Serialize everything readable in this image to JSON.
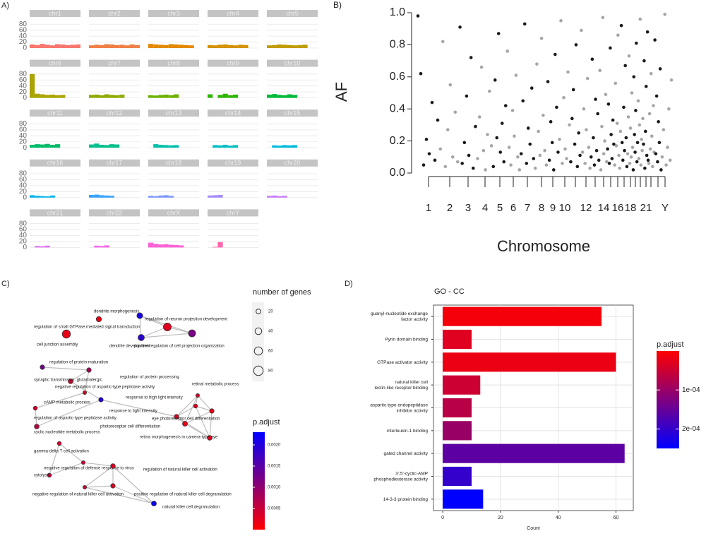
{
  "chart_data": [
    {
      "type": "facet-histogram",
      "panel": "A)",
      "ylim": [
        0,
        90
      ],
      "yticks": [
        0,
        20,
        40,
        60,
        80
      ],
      "facets": [
        {
          "name": "chr1",
          "color": "#f8766d",
          "values": [
            12,
            10,
            14,
            11,
            9,
            13,
            12,
            10,
            11,
            12
          ]
        },
        {
          "name": "chr2",
          "color": "#ef7f45",
          "values": [
            9,
            11,
            10,
            13,
            12,
            10,
            11,
            9,
            12,
            10
          ]
        },
        {
          "name": "chr3",
          "color": "#e38900",
          "values": [
            14,
            12,
            11,
            10,
            13,
            12,
            11,
            10,
            9,
            null
          ]
        },
        {
          "name": "chr4",
          "color": "#d39200",
          "values": [
            10,
            9,
            11,
            12,
            10,
            9,
            11,
            10,
            null,
            null
          ]
        },
        {
          "name": "chr5",
          "color": "#c09b00",
          "values": [
            9,
            10,
            12,
            11,
            10,
            9,
            10,
            11,
            null,
            null
          ]
        },
        {
          "name": "chr6",
          "color": "#a9a400",
          "values": [
            80,
            14,
            12,
            10,
            11,
            9,
            10,
            null,
            null,
            null
          ]
        },
        {
          "name": "chr7",
          "color": "#8fab00",
          "values": [
            10,
            11,
            9,
            12,
            10,
            9,
            11,
            null,
            null,
            null
          ]
        },
        {
          "name": "chr8",
          "color": "#6bb100",
          "values": [
            9,
            8,
            10,
            11,
            9,
            12,
            null,
            null,
            null,
            null
          ]
        },
        {
          "name": "chr9",
          "color": "#2db600",
          "values": [
            12,
            null,
            10,
            14,
            9,
            11,
            null,
            null,
            null,
            null
          ]
        },
        {
          "name": "chr10",
          "color": "#00ba38",
          "values": [
            11,
            13,
            10,
            9,
            12,
            10,
            null,
            null,
            null,
            null
          ]
        },
        {
          "name": "chr11",
          "color": "#00bc6a",
          "values": [
            10,
            12,
            11,
            13,
            10,
            12,
            null,
            null,
            null,
            null
          ]
        },
        {
          "name": "chr12",
          "color": "#00bf8c",
          "values": [
            11,
            14,
            10,
            9,
            12,
            11,
            null,
            null,
            null,
            null
          ]
        },
        {
          "name": "chr13",
          "color": "#00c0aa",
          "values": [
            null,
            12,
            10,
            9,
            8,
            9,
            null,
            null,
            null,
            null
          ]
        },
        {
          "name": "chr14",
          "color": "#00bfc4",
          "values": [
            null,
            9,
            8,
            10,
            7,
            9,
            null,
            null,
            null,
            null
          ]
        },
        {
          "name": "chr15",
          "color": "#00bcdc",
          "values": [
            null,
            8,
            7,
            9,
            8,
            9,
            null,
            null,
            null,
            null
          ]
        },
        {
          "name": "chr16",
          "color": "#00b4ef",
          "values": [
            8,
            6,
            5,
            4,
            7,
            null,
            null,
            null,
            null,
            null
          ]
        },
        {
          "name": "chr17",
          "color": "#35a2ff",
          "values": [
            9,
            10,
            8,
            7,
            6,
            null,
            null,
            null,
            null,
            null
          ]
        },
        {
          "name": "chr18",
          "color": "#7c96ff",
          "values": [
            6,
            5,
            7,
            8,
            6,
            null,
            null,
            null,
            null,
            null
          ]
        },
        {
          "name": "chr19",
          "color": "#a58aff",
          "values": [
            7,
            8,
            9,
            null,
            null,
            null,
            null,
            null,
            null,
            null
          ]
        },
        {
          "name": "chr20",
          "color": "#c77cff",
          "values": [
            6,
            7,
            5,
            6,
            null,
            null,
            null,
            null,
            null,
            null
          ]
        },
        {
          "name": "chr21",
          "color": "#df70f8",
          "values": [
            null,
            5,
            4,
            6,
            null,
            null,
            null,
            null,
            null,
            null
          ]
        },
        {
          "name": "chr22",
          "color": "#f166e8",
          "values": [
            null,
            6,
            5,
            7,
            null,
            null,
            null,
            null,
            null,
            null
          ]
        },
        {
          "name": "chrX",
          "color": "#fc61d5",
          "values": [
            16,
            12,
            10,
            11,
            9,
            8,
            7,
            null,
            null,
            null
          ]
        },
        {
          "name": "chrY",
          "color": "#ff65ae",
          "values": [
            0,
            2,
            18,
            0,
            null,
            null,
            null,
            null,
            null,
            null
          ]
        }
      ]
    },
    {
      "type": "strip-scatter",
      "panel": "B)",
      "xlabel": "Chromosome",
      "ylabel": "AF",
      "ylim": [
        0,
        1
      ],
      "yticks": [
        {
          "value": 0,
          "label": "0.0"
        },
        0.2,
        0.4,
        0.6,
        0.8,
        {
          "value": 1,
          "label": "1.0"
        }
      ],
      "colors": [
        "#1a1a1a",
        "#a6a6a6"
      ],
      "categories": [
        "1",
        "2",
        "3",
        "4",
        "5",
        "6",
        "7",
        "8",
        "9",
        "10",
        null,
        "12",
        null,
        "14",
        null,
        "16",
        null,
        "18",
        null,
        null,
        "21",
        null,
        null,
        "Y"
      ],
      "values": [
        [
          0.98,
          0.62,
          0.05,
          0.21,
          0.12,
          0.44,
          0.08,
          0.33
        ],
        [
          0.15,
          0.82,
          0.04,
          0.27,
          0.55,
          0.1,
          0.38,
          0.07
        ],
        [
          0.91,
          0.06,
          0.19,
          0.48,
          0.11,
          0.72,
          0.03,
          0.29
        ],
        [
          0.09,
          0.35,
          0.66,
          0.14,
          0.02,
          0.24,
          0.51,
          0.17
        ],
        [
          0.04,
          0.58,
          0.22,
          0.87,
          0.13,
          0.31,
          0.07,
          0.42
        ],
        [
          0.76,
          0.16,
          0.05,
          0.39,
          0.23,
          0.61,
          0.1,
          0.02
        ],
        [
          0.12,
          0.45,
          0.93,
          0.06,
          0.28,
          0.18,
          0.53,
          0.09
        ],
        [
          0.03,
          0.68,
          0.26,
          0.11,
          0.84,
          0.36,
          0.14,
          0.05
        ],
        [
          0.57,
          0.08,
          0.32,
          0.19,
          0.02,
          0.74,
          0.41,
          0.13
        ],
        [
          0.21,
          0.95,
          0.06,
          0.47,
          0.15,
          0.09,
          0.63,
          0.3
        ],
        [
          0.07,
          0.34,
          0.52,
          0.18,
          0.8,
          0.04,
          0.25,
          0.11
        ],
        [
          0.89,
          0.13,
          0.4,
          0.06,
          0.27,
          0.59,
          0.16,
          0.03
        ],
        [
          0.1,
          0.71,
          0.22,
          0.05,
          0.46,
          0.14,
          0.37,
          0.08
        ],
        [
          0.64,
          0.02,
          0.29,
          0.97,
          0.12,
          0.2,
          0.49,
          0.07
        ],
        [
          0.15,
          0.43,
          0.06,
          0.78,
          0.24,
          0.09,
          0.33,
          0.18
        ],
        [
          0.05,
          0.56,
          0.17,
          0.31,
          0.86,
          0.11,
          0.03,
          0.26
        ],
        [
          0.92,
          0.19,
          0.08,
          0.41,
          0.14,
          0.67,
          0.22,
          0.04
        ],
        [
          0.12,
          0.35,
          0.73,
          0.06,
          0.28,
          0.1,
          0.5,
          0.16
        ],
        [
          0.02,
          0.6,
          0.24,
          0.13,
          0.39,
          0.81,
          0.07,
          0.19
        ],
        [
          0.45,
          0.09,
          0.3,
          0.96,
          0.05,
          0.21,
          0.14,
          0.34
        ],
        [
          0.18,
          0.7,
          0.03,
          0.26,
          0.54,
          0.11,
          0.88,
          0.08
        ],
        [
          0.06,
          0.37,
          0.15,
          0.62,
          0.23,
          0.04,
          0.42,
          0.13
        ],
        [
          0.83,
          0.12,
          0.48,
          0.07,
          0.32,
          0.19,
          0.65,
          0.02
        ],
        [
          0.1,
          0.27,
          0.99,
          0.05,
          0.16,
          0.4,
          0.08,
          0.58
        ]
      ]
    },
    {
      "type": "network",
      "panel": "C)",
      "size_legend": {
        "title": "number of genes",
        "values": [
          20,
          40,
          60,
          80
        ]
      },
      "color_legend": {
        "title": "p.adjust",
        "lim": [
          0,
          0.0023
        ],
        "ticks": [
          0.0005,
          {
            "value": 0.001,
            "label": "0.0010"
          },
          0.0015,
          {
            "value": 0.002,
            "label": "0.0020"
          }
        ],
        "colors": [
          "#ff0000",
          "#0000ff"
        ]
      },
      "nodes": [
        {
          "label": "dendrite morphogenesis",
          "count": 30,
          "p_adjust": 0.0021
        },
        {
          "label": "regulation of neuron projection development",
          "count": 55,
          "p_adjust": 0.0003
        },
        {
          "label": "regulation of small GTPase mediated signal transduction",
          "count": 25,
          "p_adjust": 0.0002
        },
        {
          "label": "cell junction assembly",
          "count": 60,
          "p_adjust": 0.0002
        },
        {
          "label": "dendrite development",
          "count": 35,
          "p_adjust": 0.0019
        },
        {
          "label": "positive regulation of cell projection organization",
          "count": 45,
          "p_adjust": 0.0012
        },
        {
          "label": "regulation of protein maturation",
          "count": 18,
          "p_adjust": 0.0013
        },
        {
          "label": "regulation of protein processing",
          "count": 18,
          "p_adjust": 0.0008
        },
        {
          "label": "synaptic transmission, glutamatergic",
          "count": 20,
          "p_adjust": 0.0004
        },
        {
          "label": "negative regulation of aspartic-type peptidase activity",
          "count": 12,
          "p_adjust": 0.0003
        },
        {
          "label": "cAMP metabolic process",
          "count": 18,
          "p_adjust": 0.002
        },
        {
          "label": "regulation of aspartic-type peptidase activity",
          "count": 14,
          "p_adjust": 0.0004
        },
        {
          "label": "cyclic nucleotide metabolic process",
          "count": 20,
          "p_adjust": 0.0006
        },
        {
          "label": "retinal metabolic process",
          "count": 12,
          "p_adjust": 0.0004
        },
        {
          "label": "response to high light intensity",
          "count": 14,
          "p_adjust": 0.0003
        },
        {
          "label": "response to light intensity",
          "count": 18,
          "p_adjust": 0.0003
        },
        {
          "label": "photoreceptor cell differentiation",
          "count": 22,
          "p_adjust": 0.0002
        },
        {
          "label": "eye photoreceptor cell differentiation",
          "count": 18,
          "p_adjust": 0.0002
        },
        {
          "label": "retina morphogenesis in camera-type eye",
          "count": 20,
          "p_adjust": 0.0003
        },
        {
          "label": "gamma-delta T cell activation",
          "count": 14,
          "p_adjust": 0.0004
        },
        {
          "label": "negative regulation of defense response to virus",
          "count": 12,
          "p_adjust": 0.0005
        },
        {
          "label": "regulation of natural killer cell activation",
          "count": 20,
          "p_adjust": 0.0003
        },
        {
          "label": "cytolysis",
          "count": 14,
          "p_adjust": 0.0005
        },
        {
          "label": "negative regulation of natural killer cell activation",
          "count": 12,
          "p_adjust": 0.0004
        },
        {
          "label": "positive regulation of natural killer cell degranulation",
          "count": 18,
          "p_adjust": 0.0003
        },
        {
          "label": "natural killer cell degranulation",
          "count": 22,
          "p_adjust": 0.0022
        }
      ]
    },
    {
      "type": "bar",
      "panel": "D)",
      "title": "GO - CC",
      "xlabel": "Count",
      "categories": [
        "guanyl-nucleotide exchange\nfactor activity",
        "Pyrin domain binding",
        "GTPase activator activity",
        "natural killer cell\nlectin-like receptor binding",
        "aspartic-type endopeptidase\ninhibitor activity",
        "interleukin-1 binding",
        "gated channel activity",
        "3',5'-cyclic-AMP\nphosphodiesterase activity",
        "14-3-3 protein binding"
      ],
      "values": [
        55,
        10,
        60,
        13,
        10,
        10,
        63,
        10,
        14
      ],
      "p_adjust": [
        1e-05,
        3e-05,
        2e-05,
        5e-05,
        7e-05,
        0.0001,
        0.00016,
        0.0002,
        0.00025
      ],
      "xlim": [
        -3.2,
        66
      ],
      "xticks": [
        0,
        20,
        40,
        60
      ],
      "grid": true,
      "color_legend": {
        "title": "p.adjust",
        "lim": [
          0,
          0.00025
        ],
        "ticks": [
          {
            "value": 0.0001,
            "label": "1e-04"
          },
          {
            "value": 0.0002,
            "label": "2e-04"
          }
        ],
        "colors": [
          "#ff0000",
          "#0000ff"
        ]
      }
    }
  ]
}
